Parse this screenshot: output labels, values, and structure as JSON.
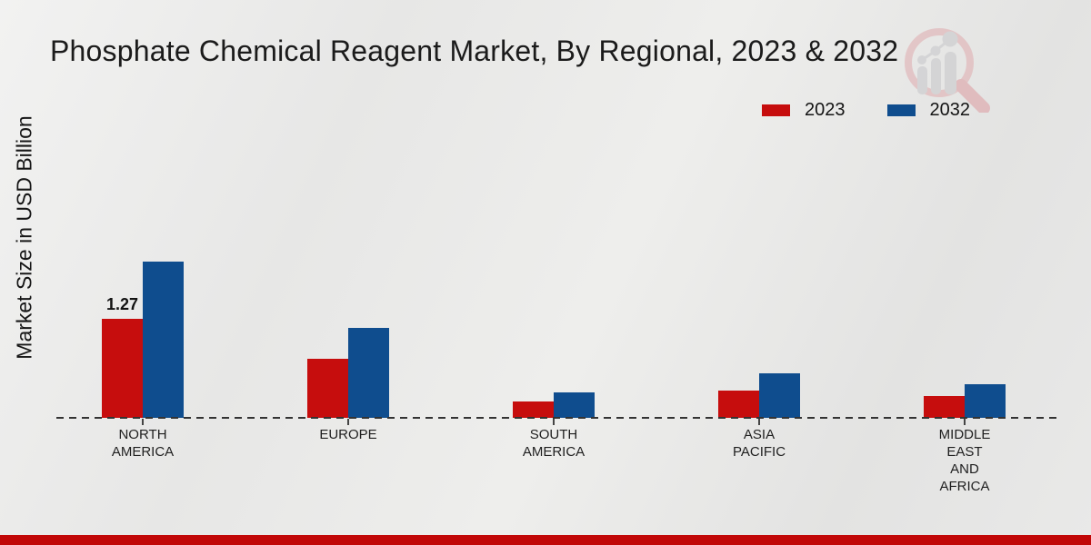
{
  "title": "Phosphate Chemical Reagent Market, By Regional, 2023 & 2032",
  "ylabel": "Market Size in USD Billion",
  "colors": {
    "series_2023": "#c60d0d",
    "series_2032": "#0f4d8e",
    "footer_bar": "#c10707",
    "baseline": "#333333"
  },
  "watermark": "market-research-magnifier-logo",
  "chart_data": {
    "type": "bar",
    "title": "Phosphate Chemical Reagent Market, By Regional, 2023 & 2032",
    "xlabel": "",
    "ylabel": "Market Size in USD Billion",
    "categories": [
      "NORTH AMERICA",
      "EUROPE",
      "SOUTH AMERICA",
      "ASIA PACIFIC",
      "MIDDLE EAST AND AFRICA"
    ],
    "series": [
      {
        "name": "2023",
        "color": "#c60d0d",
        "values": [
          1.27,
          0.76,
          0.21,
          0.35,
          0.28
        ]
      },
      {
        "name": "2032",
        "color": "#0f4d8e",
        "values": [
          2.0,
          1.15,
          0.33,
          0.57,
          0.43
        ]
      }
    ],
    "ylim": [
      0,
      2.2
    ],
    "grid": false,
    "axis_style": "dashed-baseline-only",
    "legend_position": "top-right",
    "annotations": [
      {
        "text": "1.27",
        "series": "2023",
        "category": "NORTH AMERICA"
      }
    ]
  }
}
